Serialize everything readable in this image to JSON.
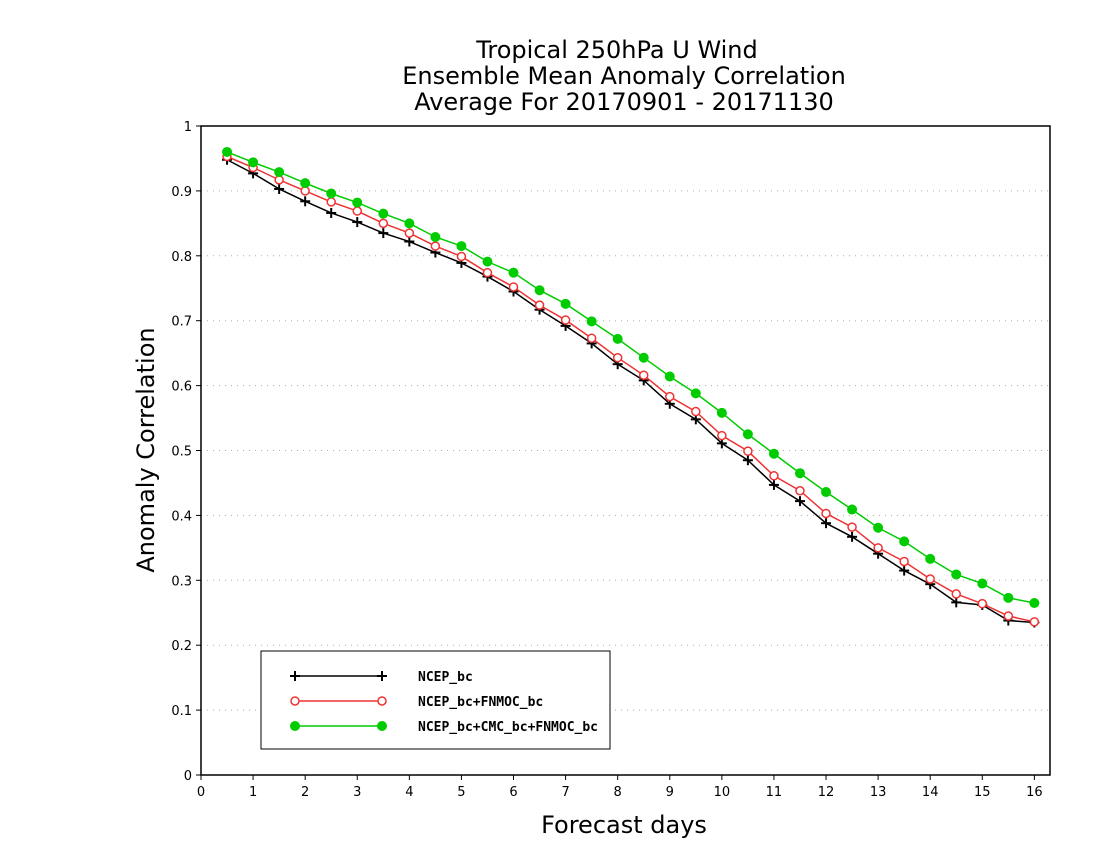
{
  "chart_data": {
    "type": "line",
    "title_lines": [
      "Tropical 250hPa U Wind",
      "Ensemble Mean Anomaly Correlation",
      "Average For 20170901 - 20171130"
    ],
    "xlabel": "Forecast days",
    "ylabel": "Anomaly Correlation",
    "xlim": [
      0,
      16.3
    ],
    "ylim": [
      0,
      1
    ],
    "x_ticks": [
      "0",
      "1",
      "2",
      "3",
      "4",
      "5",
      "6",
      "7",
      "8",
      "9",
      "10",
      "11",
      "12",
      "13",
      "14",
      "15",
      "16"
    ],
    "y_ticks": [
      "0",
      "0.1",
      "0.2",
      "0.3",
      "0.4",
      "0.5",
      "0.6",
      "0.7",
      "0.8",
      "0.9",
      "1"
    ],
    "grid": "dotted horizontal",
    "legend_position": "bottom-left",
    "x": [
      0.5,
      1,
      1.5,
      2,
      2.5,
      3,
      3.5,
      4,
      4.5,
      5,
      5.5,
      6,
      6.5,
      7,
      7.5,
      8,
      8.5,
      9,
      9.5,
      10,
      10.5,
      11,
      11.5,
      12,
      12.5,
      13,
      13.5,
      14,
      14.5,
      15,
      15.5,
      16
    ],
    "series": [
      {
        "name": "NCEP_bc",
        "color": "#000000",
        "marker": "plus",
        "values": [
          0.948,
          0.927,
          0.903,
          0.884,
          0.866,
          0.852,
          0.835,
          0.822,
          0.805,
          0.789,
          0.768,
          0.745,
          0.717,
          0.692,
          0.665,
          0.633,
          0.608,
          0.572,
          0.548,
          0.511,
          0.485,
          0.447,
          0.422,
          0.388,
          0.367,
          0.341,
          0.315,
          0.294,
          0.266,
          0.262,
          0.238,
          0.235
        ]
      },
      {
        "name": "NCEP_bc+FNMOC_bc",
        "color": "#ee3333",
        "marker": "open-circle",
        "values": [
          0.953,
          0.936,
          0.917,
          0.9,
          0.883,
          0.869,
          0.85,
          0.835,
          0.815,
          0.799,
          0.774,
          0.752,
          0.724,
          0.701,
          0.673,
          0.643,
          0.616,
          0.583,
          0.56,
          0.523,
          0.499,
          0.461,
          0.438,
          0.403,
          0.382,
          0.35,
          0.329,
          0.302,
          0.279,
          0.264,
          0.245,
          0.236
        ]
      },
      {
        "name": "NCEP_bc+CMC_bc+FNMOC_bc",
        "color": "#00cc00",
        "marker": "filled-circle",
        "values": [
          0.96,
          0.944,
          0.929,
          0.912,
          0.896,
          0.882,
          0.865,
          0.85,
          0.829,
          0.815,
          0.791,
          0.774,
          0.747,
          0.726,
          0.699,
          0.672,
          0.643,
          0.614,
          0.588,
          0.558,
          0.525,
          0.495,
          0.465,
          0.436,
          0.409,
          0.381,
          0.36,
          0.333,
          0.309,
          0.295,
          0.273,
          0.265
        ]
      }
    ]
  }
}
